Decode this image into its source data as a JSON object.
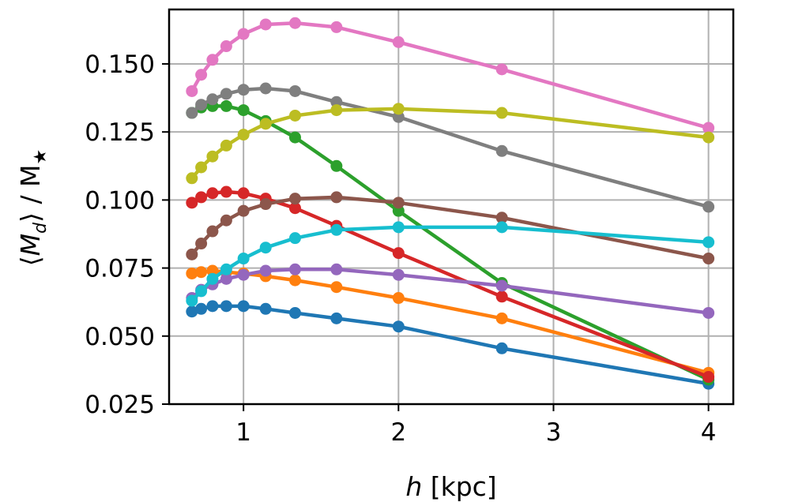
{
  "chart_data": {
    "type": "line",
    "title": "",
    "xlabel": "h [kpc]",
    "ylabel": "⟨M_d⟩ / M★",
    "xlim": [
      0.52,
      4.16
    ],
    "ylim": [
      0.025,
      0.17
    ],
    "grid": true,
    "legend": "none",
    "xticks": [
      1,
      2,
      3,
      4
    ],
    "xtick_labels": [
      "1",
      "2",
      "3",
      "4"
    ],
    "yticks": [
      0.025,
      0.05,
      0.075,
      0.1,
      0.125,
      0.15
    ],
    "ytick_labels": [
      "0.025",
      "0.050",
      "0.075",
      "0.100",
      "0.125",
      "0.150"
    ],
    "x": [
      0.667,
      0.727,
      0.8,
      0.889,
      1.0,
      1.143,
      1.333,
      1.6,
      2.0,
      2.667,
      4.0
    ],
    "series": [
      {
        "name": "series-1",
        "color": "#1f77b4",
        "values": [
          0.059,
          0.06,
          0.061,
          0.061,
          0.061,
          0.06,
          0.0585,
          0.0565,
          0.0535,
          0.0455,
          0.0325
        ]
      },
      {
        "name": "series-2",
        "color": "#ff7f0e",
        "values": [
          0.073,
          0.0735,
          0.074,
          0.0735,
          0.073,
          0.072,
          0.0705,
          0.068,
          0.064,
          0.0565,
          0.0365
        ]
      },
      {
        "name": "series-3",
        "color": "#2ca02c",
        "values": [
          0.132,
          0.134,
          0.1345,
          0.1345,
          0.133,
          0.129,
          0.123,
          0.1125,
          0.096,
          0.0695,
          0.034
        ]
      },
      {
        "name": "series-4",
        "color": "#d62728",
        "values": [
          0.099,
          0.101,
          0.1025,
          0.103,
          0.1025,
          0.1005,
          0.097,
          0.0905,
          0.0805,
          0.0645,
          0.035
        ]
      },
      {
        "name": "series-5",
        "color": "#9467bd",
        "values": [
          0.064,
          0.067,
          0.069,
          0.071,
          0.0725,
          0.074,
          0.0745,
          0.0745,
          0.0725,
          0.0685,
          0.0585
        ]
      },
      {
        "name": "series-6",
        "color": "#8c564b",
        "values": [
          0.08,
          0.084,
          0.0885,
          0.0925,
          0.096,
          0.0985,
          0.1005,
          0.101,
          0.099,
          0.0935,
          0.0785
        ]
      },
      {
        "name": "series-7",
        "color": "#e377c2",
        "values": [
          0.14,
          0.146,
          0.1515,
          0.1565,
          0.161,
          0.1645,
          0.165,
          0.1635,
          0.158,
          0.148,
          0.1265
        ]
      },
      {
        "name": "series-8",
        "color": "#7f7f7f",
        "values": [
          0.132,
          0.135,
          0.137,
          0.139,
          0.1405,
          0.141,
          0.14,
          0.136,
          0.1305,
          0.118,
          0.0975
        ]
      },
      {
        "name": "series-9",
        "color": "#bcbd22",
        "values": [
          0.108,
          0.112,
          0.116,
          0.12,
          0.124,
          0.128,
          0.131,
          0.133,
          0.1335,
          0.132,
          0.123
        ]
      },
      {
        "name": "series-10",
        "color": "#17becf",
        "values": [
          0.063,
          0.0665,
          0.071,
          0.0745,
          0.0785,
          0.0825,
          0.086,
          0.089,
          0.09,
          0.09,
          0.0845
        ]
      }
    ]
  }
}
